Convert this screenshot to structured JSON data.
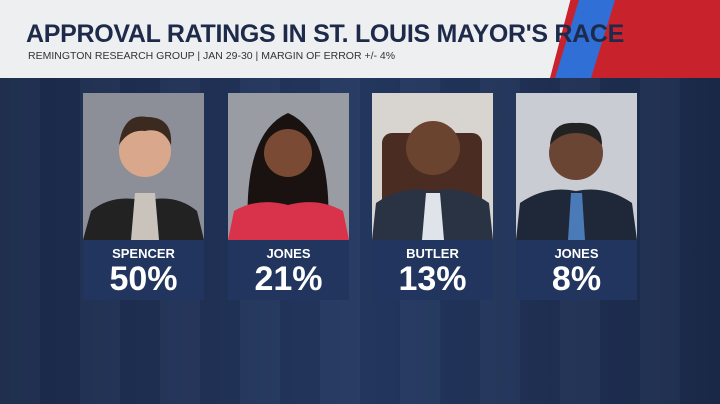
{
  "header": {
    "title": "APPROVAL RATINGS IN ST. LOUIS MAYOR'S RACE",
    "subtitle": "REMINGTON RESEARCH GROUP | JAN 29-30 | MARGIN OF ERROR +/- 4%"
  },
  "candidates": [
    {
      "name": "SPENCER",
      "value": "50%"
    },
    {
      "name": "JONES",
      "value": "21%"
    },
    {
      "name": "BUTLER",
      "value": "13%"
    },
    {
      "name": "JONES",
      "value": "8%"
    }
  ]
}
